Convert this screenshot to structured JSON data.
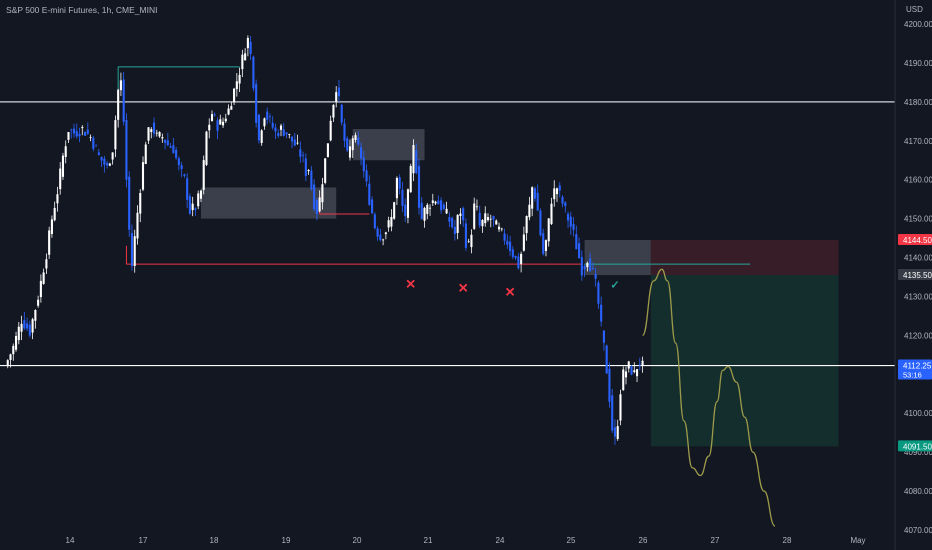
{
  "header": {
    "title": "S&P 500 E-mini Futures, 1h, CME_MINI"
  },
  "chart_data": {
    "type": "candlestick",
    "currency": "USD",
    "ylim": [
      4070,
      4205
    ],
    "y_ticks": [
      4070,
      4080,
      4090,
      4100,
      4110,
      4120,
      4130,
      4140,
      4150,
      4160,
      4170,
      4180,
      4190,
      4200
    ],
    "x_ticks": [
      "14",
      "17",
      "18",
      "19",
      "20",
      "21",
      "24",
      "25",
      "26",
      "27",
      "28",
      "May"
    ],
    "price_badges": [
      {
        "value": "4144.50",
        "price": 4144.5,
        "color": "#f23645"
      },
      {
        "value": "4135.50",
        "price": 4135.5,
        "color": "#363a45"
      },
      {
        "value": "4112.25",
        "sub": "53:16",
        "price": 4112.25,
        "color": "#2962ff"
      },
      {
        "value": "4091.50",
        "price": 4091.5,
        "color": "#089981"
      }
    ],
    "series": [
      {
        "name": "Up",
        "color": "#ffffff"
      },
      {
        "name": "Down",
        "color": "#2962ff"
      }
    ],
    "path_points": [
      [
        0,
        4112
      ],
      [
        3,
        4117
      ],
      [
        6,
        4124
      ],
      [
        9,
        4121
      ],
      [
        12,
        4130
      ],
      [
        15,
        4141
      ],
      [
        17,
        4150
      ],
      [
        19,
        4157
      ],
      [
        21,
        4166
      ],
      [
        23,
        4173
      ],
      [
        25,
        4172
      ],
      [
        28,
        4173
      ],
      [
        31,
        4171
      ],
      [
        34,
        4166
      ],
      [
        37,
        4163
      ],
      [
        39,
        4168
      ],
      [
        41,
        4183
      ],
      [
        42,
        4185
      ],
      [
        43,
        4175
      ],
      [
        44,
        4160
      ],
      [
        45,
        4147
      ],
      [
        46,
        4138
      ],
      [
        47,
        4145
      ],
      [
        49,
        4158
      ],
      [
        51,
        4170
      ],
      [
        53,
        4174
      ],
      [
        55,
        4171
      ],
      [
        57,
        4171
      ],
      [
        59,
        4169
      ],
      [
        61,
        4168
      ],
      [
        63,
        4163
      ],
      [
        65,
        4160
      ],
      [
        67,
        4152
      ],
      [
        69,
        4153
      ],
      [
        71,
        4157
      ],
      [
        72,
        4164
      ],
      [
        73,
        4172
      ],
      [
        75,
        4177
      ],
      [
        77,
        4174
      ],
      [
        79,
        4175
      ],
      [
        81,
        4178
      ],
      [
        83,
        4183
      ],
      [
        85,
        4188
      ],
      [
        87,
        4194
      ],
      [
        88,
        4196
      ],
      [
        89,
        4192
      ],
      [
        90,
        4185
      ],
      [
        91,
        4176
      ],
      [
        92,
        4170
      ],
      [
        93,
        4174
      ],
      [
        94,
        4177
      ],
      [
        96,
        4175
      ],
      [
        98,
        4172
      ],
      [
        100,
        4173
      ],
      [
        102,
        4172
      ],
      [
        104,
        4170
      ],
      [
        106,
        4168
      ],
      [
        108,
        4165
      ],
      [
        109,
        4162
      ],
      [
        110,
        4163
      ],
      [
        111,
        4158
      ],
      [
        112,
        4154
      ],
      [
        113,
        4152
      ],
      [
        114,
        4155
      ],
      [
        115,
        4160
      ],
      [
        116,
        4165
      ],
      [
        117,
        4170
      ],
      [
        118,
        4176
      ],
      [
        119,
        4180
      ],
      [
        120,
        4184
      ],
      [
        121,
        4180
      ],
      [
        122,
        4174
      ],
      [
        123,
        4170
      ],
      [
        124,
        4166
      ],
      [
        125,
        4168
      ],
      [
        126,
        4171
      ],
      [
        127,
        4170
      ],
      [
        128,
        4168
      ],
      [
        129,
        4166
      ],
      [
        130,
        4162
      ],
      [
        132,
        4155
      ],
      [
        134,
        4148
      ],
      [
        136,
        4145
      ],
      [
        138,
        4147
      ],
      [
        140,
        4150
      ],
      [
        141,
        4155
      ],
      [
        142,
        4160
      ],
      [
        143,
        4157
      ],
      [
        144,
        4153
      ],
      [
        145,
        4151
      ],
      [
        146,
        4156
      ],
      [
        147,
        4162
      ],
      [
        148,
        4168
      ],
      [
        149,
        4163
      ],
      [
        150,
        4154
      ],
      [
        151,
        4150
      ],
      [
        152,
        4152
      ],
      [
        154,
        4154
      ],
      [
        156,
        4155
      ],
      [
        158,
        4153
      ],
      [
        160,
        4151
      ],
      [
        162,
        4148
      ],
      [
        163,
        4146
      ],
      [
        164,
        4150
      ],
      [
        165,
        4152
      ],
      [
        166,
        4149
      ],
      [
        167,
        4144
      ],
      [
        168,
        4143
      ],
      [
        169,
        4147
      ],
      [
        170,
        4153
      ],
      [
        171,
        4152
      ],
      [
        172,
        4148
      ],
      [
        173,
        4149
      ],
      [
        174,
        4150
      ],
      [
        176,
        4150
      ],
      [
        178,
        4148
      ],
      [
        180,
        4146
      ],
      [
        182,
        4144
      ],
      [
        184,
        4141
      ],
      [
        186,
        4138
      ],
      [
        187,
        4141
      ],
      [
        188,
        4146
      ],
      [
        189,
        4150
      ],
      [
        190,
        4153
      ],
      [
        191,
        4158
      ],
      [
        192,
        4156
      ],
      [
        193,
        4152
      ],
      [
        194,
        4146
      ],
      [
        195,
        4141
      ],
      [
        196,
        4144
      ],
      [
        197,
        4149
      ],
      [
        198,
        4155
      ],
      [
        199,
        4157
      ],
      [
        200,
        4158
      ],
      [
        201,
        4156
      ],
      [
        202,
        4154
      ],
      [
        203,
        4152
      ],
      [
        204,
        4150
      ],
      [
        205,
        4148
      ],
      [
        206,
        4146
      ],
      [
        207,
        4143
      ],
      [
        208,
        4140
      ],
      [
        209,
        4137
      ],
      [
        210,
        4138
      ],
      [
        211,
        4140
      ],
      [
        212,
        4138
      ],
      [
        213,
        4136
      ],
      [
        214,
        4133
      ],
      [
        215,
        4128
      ],
      [
        216,
        4122
      ],
      [
        217,
        4117
      ],
      [
        218,
        4111
      ],
      [
        219,
        4104
      ],
      [
        220,
        4096
      ],
      [
        221,
        4093
      ],
      [
        222,
        4098
      ],
      [
        223,
        4106
      ],
      [
        224,
        4110
      ],
      [
        225,
        4111
      ],
      [
        226,
        4112
      ],
      [
        227,
        4111
      ],
      [
        228,
        4110
      ],
      [
        229,
        4112
      ],
      [
        230,
        4113
      ],
      [
        231,
        4112
      ]
    ],
    "levels": [
      {
        "name": "resistance-4180",
        "price": 4180,
        "color": "#d1d4dc",
        "full": true
      },
      {
        "name": "current-4112",
        "price": 4112.25,
        "color": "#ffffff",
        "full": true
      },
      {
        "name": "support-4138",
        "price": 4138.3,
        "color": "#f23645",
        "from": 44,
        "to": 209
      },
      {
        "name": "high-4189",
        "price": 4189,
        "color": "#26a69a",
        "from": 41,
        "to": 85
      },
      {
        "name": "low-4151",
        "price": 4151.2,
        "color": "#f23645",
        "from": 114,
        "to": 132
      },
      {
        "name": "entry-4138",
        "price": 4138.3,
        "color": "#26a69a",
        "from": 210,
        "to": 270
      }
    ],
    "zones": [
      {
        "name": "supply-zone-1",
        "x0": 71,
        "x1": 120,
        "y0": 4158,
        "y1": 4150
      },
      {
        "name": "supply-zone-2",
        "x0": 126,
        "x1": 152,
        "y0": 4173,
        "y1": 4165
      },
      {
        "name": "supply-zone-3",
        "x0": 210,
        "x1": 234,
        "y0": 4144.5,
        "y1": 4135.5
      },
      {
        "name": "stop-zone",
        "x0": 234,
        "x1": 302,
        "y0": 4144.5,
        "y1": 4135.5
      },
      {
        "name": "target-zone",
        "x0": 234,
        "x1": 302,
        "y0": 4135.5,
        "y1": 4091.5
      }
    ],
    "markers": [
      {
        "name": "x-marker-1",
        "symbol": "✕",
        "x": 147,
        "price": 4132,
        "color": "#f23645"
      },
      {
        "name": "x-marker-2",
        "symbol": "✕",
        "x": 166,
        "price": 4131,
        "color": "#f23645"
      },
      {
        "name": "x-marker-3",
        "symbol": "✕",
        "x": 183,
        "price": 4130,
        "color": "#f23645"
      },
      {
        "name": "check-marker",
        "symbol": "✓",
        "x": 221,
        "price": 4132,
        "color": "#26a69a"
      }
    ],
    "projection": [
      [
        231,
        4120
      ],
      [
        235,
        4134
      ],
      [
        238,
        4137
      ],
      [
        240,
        4134
      ],
      [
        243,
        4118
      ],
      [
        246,
        4098
      ],
      [
        249,
        4086
      ],
      [
        252,
        4084
      ],
      [
        255,
        4089
      ],
      [
        258,
        4103
      ],
      [
        260,
        4111
      ],
      [
        262,
        4112
      ],
      [
        265,
        4108
      ],
      [
        268,
        4099
      ],
      [
        271,
        4090
      ],
      [
        275,
        4080
      ],
      [
        279,
        4071
      ]
    ]
  }
}
